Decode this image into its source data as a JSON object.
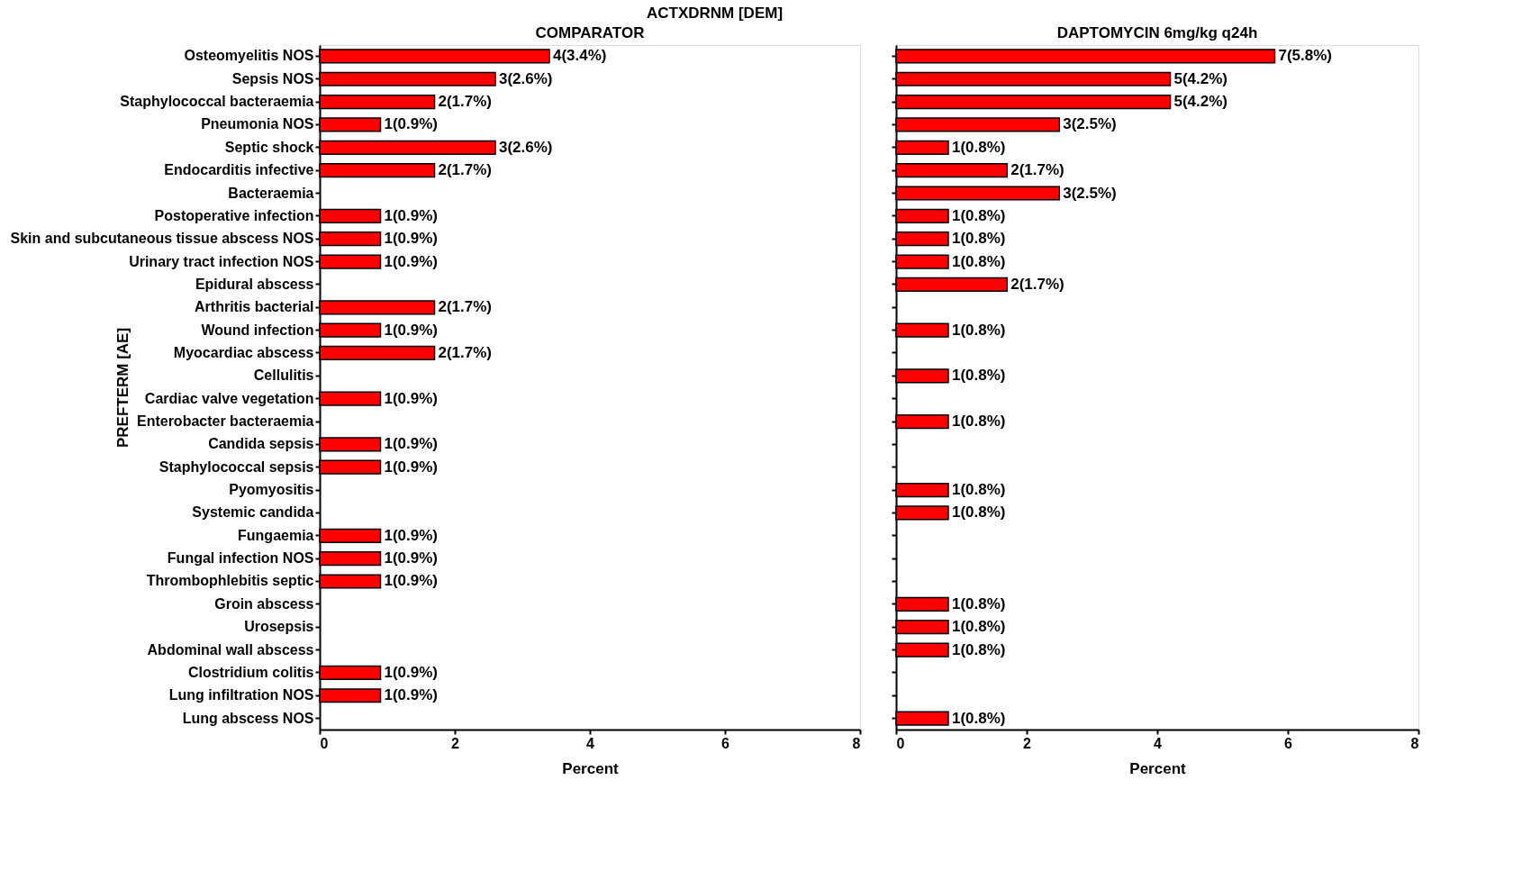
{
  "chart_data": [
    {
      "type": "bar",
      "orientation": "horizontal",
      "title": "COMPARATOR",
      "annotations": [
        "ACTXDRNM [DEM]"
      ],
      "xlabel": "Percent",
      "ylabel": "PREFTERM [AE]",
      "categories": [
        "Osteomyelitis NOS",
        "Sepsis NOS",
        "Staphylococcal bacteraemia",
        "Pneumonia NOS",
        "Septic shock",
        "Endocarditis infective",
        "Bacteraemia",
        "Postoperative infection",
        "Skin and subcutaneous tissue abscess NOS",
        "Urinary tract infection NOS",
        "Epidural abscess",
        "Arthritis bacterial",
        "Wound infection",
        "Myocardiac abscess",
        "Cellulitis",
        "Cardiac valve vegetation",
        "Enterobacter bacteraemia",
        "Candida sepsis",
        "Staphylococcal sepsis",
        "Pyomyositis",
        "Systemic candida",
        "Fungaemia",
        "Fungal infection NOS",
        "Thrombophlebitis septic",
        "Groin abscess",
        "Urosepsis",
        "Abdominal wall abscess",
        "Clostridium colitis",
        "Lung infiltration NOS",
        "Lung abscess NOS"
      ],
      "values": [
        3.4,
        2.6,
        1.7,
        0.9,
        2.6,
        1.7,
        null,
        0.9,
        0.9,
        0.9,
        null,
        1.7,
        0.9,
        1.7,
        null,
        0.9,
        null,
        0.9,
        0.9,
        null,
        null,
        0.9,
        0.9,
        0.9,
        null,
        null,
        null,
        0.9,
        0.9,
        null
      ],
      "value_labels": [
        "4(3.4%)",
        "3(2.6%)",
        "2(1.7%)",
        "1(0.9%)",
        "3(2.6%)",
        "2(1.7%)",
        null,
        "1(0.9%)",
        "1(0.9%)",
        "1(0.9%)",
        null,
        "2(1.7%)",
        "1(0.9%)",
        "2(1.7%)",
        null,
        "1(0.9%)",
        null,
        "1(0.9%)",
        "1(0.9%)",
        null,
        null,
        "1(0.9%)",
        "1(0.9%)",
        "1(0.9%)",
        null,
        null,
        null,
        "1(0.9%)",
        "1(0.9%)",
        null
      ],
      "color": "#ff0000",
      "xlim": [
        0,
        8
      ],
      "xticks": [
        0,
        2,
        4,
        6,
        8
      ],
      "grid": false
    },
    {
      "type": "bar",
      "orientation": "horizontal",
      "title": "DAPTOMYCIN 6mg/kg q24h",
      "xlabel": "Percent",
      "categories": [
        null,
        null,
        null,
        null,
        null,
        null,
        null,
        null,
        null,
        null,
        null,
        null,
        null,
        null,
        null,
        null,
        null,
        null,
        null,
        null,
        null,
        null,
        null,
        null,
        null,
        null,
        null,
        null,
        null,
        null
      ],
      "values": [
        5.8,
        4.2,
        4.2,
        2.5,
        0.8,
        1.7,
        2.5,
        0.8,
        0.8,
        0.8,
        1.7,
        null,
        0.8,
        null,
        0.8,
        null,
        0.8,
        null,
        null,
        0.8,
        0.8,
        null,
        null,
        null,
        0.8,
        0.8,
        0.8,
        null,
        null,
        0.8
      ],
      "value_labels": [
        "7(5.8%)",
        "5(4.2%)",
        "5(4.2%)",
        "3(2.5%)",
        "1(0.8%)",
        "2(1.7%)",
        "3(2.5%)",
        "1(0.8%)",
        "1(0.8%)",
        "1(0.8%)",
        "2(1.7%)",
        null,
        "1(0.8%)",
        null,
        "1(0.8%)",
        null,
        "1(0.8%)",
        null,
        null,
        "1(0.8%)",
        "1(0.8%)",
        null,
        null,
        null,
        "1(0.8%)",
        "1(0.8%)",
        "1(0.8%)",
        null,
        null,
        "1(0.8%)"
      ],
      "color": "#ff0000",
      "xlim": [
        0,
        8
      ],
      "xticks": [
        0,
        2,
        4,
        6,
        8
      ],
      "grid": false
    }
  ]
}
